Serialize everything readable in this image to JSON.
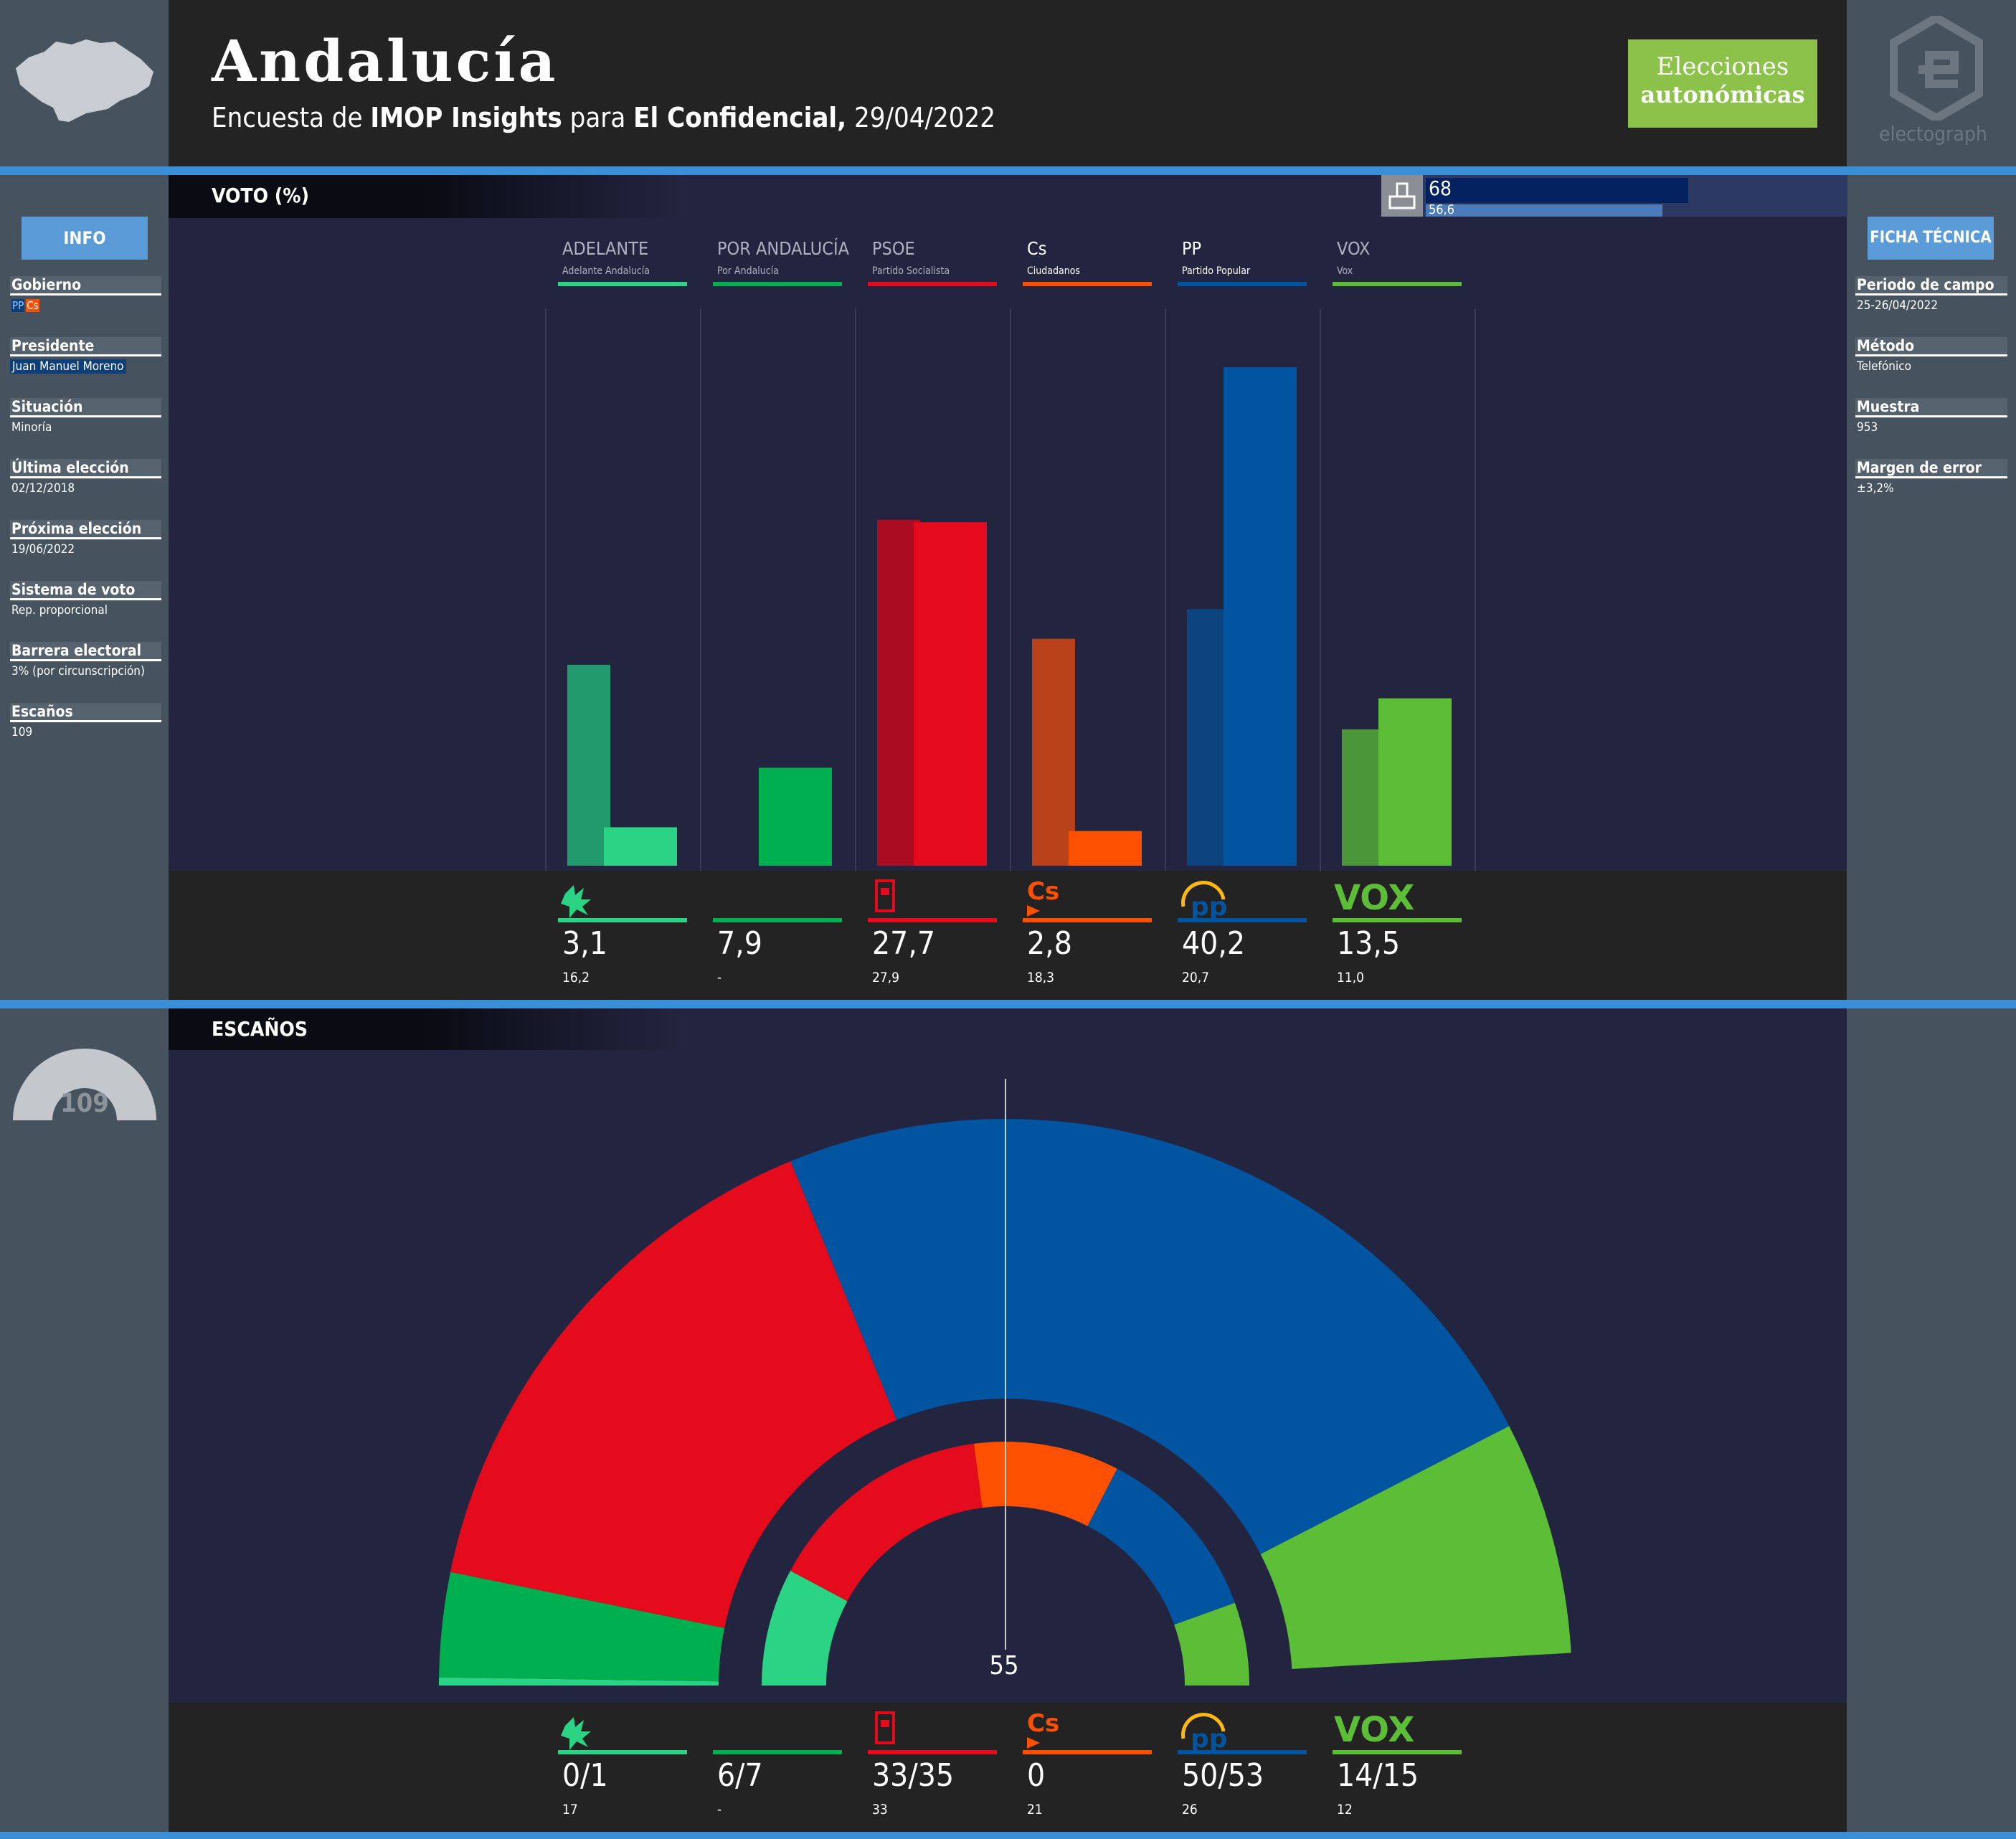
{
  "header": {
    "title": "Andalucía",
    "subtitle_prefix": "Encuesta de",
    "pollster": "IMOP Insights",
    "subtitle_mid": "para",
    "media": "El Confidencial,",
    "date": "29/04/2022",
    "badge_line1": "Elecciones",
    "badge_line2": "autonómicas",
    "brand": "electograph"
  },
  "info": {
    "button": "INFO",
    "items": [
      {
        "label": "Gobierno",
        "value": ""
      },
      {
        "label": "Presidente",
        "value": "Juan Manuel Moreno"
      },
      {
        "label": "Situación",
        "value": "Minoría"
      },
      {
        "label": "Última elección",
        "value": "02/12/2018"
      },
      {
        "label": "Próxima elección",
        "value": "19/06/2022"
      },
      {
        "label": "Sistema de voto",
        "value": "Rep. proporcional"
      },
      {
        "label": "Barrera electoral",
        "value": "3% (por circunscripción)"
      },
      {
        "label": "Escaños",
        "value": "109"
      }
    ],
    "government_tags": [
      "PP",
      "Cs"
    ]
  },
  "ficha": {
    "button": "FICHA TÉCNICA",
    "items": [
      {
        "label": "Periodo de campo",
        "value": "25-26/04/2022"
      },
      {
        "label": "Método",
        "value": "Telefónico"
      },
      {
        "label": "Muestra",
        "value": "953"
      },
      {
        "label": "Margen de error",
        "value": "±3,2%"
      }
    ]
  },
  "vote_section": {
    "title": "VOTO (%)",
    "participation_now": "68",
    "participation_prev": "56,6"
  },
  "seats_section": {
    "title": "ESCAÑOS",
    "total": "109",
    "majority_label": "55"
  },
  "colors": {
    "ADELANTE": "#2bd384",
    "ADELANTE_prev": "#239a6e",
    "POR_ANDALUCIA": "#00b050",
    "PSOE": "#e30b1c",
    "PSOE_prev": "#aa0d22",
    "Cs": "#fd5000",
    "Cs_prev": "#b8411a",
    "PP": "#0054a0",
    "PP_prev": "#0c4480",
    "VOX": "#5bbe36",
    "VOX_prev": "#4a9638"
  },
  "parties": [
    {
      "key": "ADELANTE",
      "name": "ADELANTE",
      "full": "Adelante Andalucía",
      "icon": "adelante-logo-icon",
      "vote": "3,1",
      "vote_prev": "16,2",
      "seats": "0/1",
      "seats_prev": "17"
    },
    {
      "key": "POR_ANDALUCIA",
      "name": "POR ANDALUCÍA",
      "full": "Por Andalucía",
      "icon": "",
      "vote": "7,9",
      "vote_prev": "-",
      "seats": "6/7",
      "seats_prev": "-"
    },
    {
      "key": "PSOE",
      "name": "PSOE",
      "full": "Partido Socialista",
      "icon": "psoe-logo-icon",
      "vote": "27,7",
      "vote_prev": "27,9",
      "seats": "33/35",
      "seats_prev": "33"
    },
    {
      "key": "Cs",
      "name": "Cs",
      "full": "Ciudadanos",
      "icon": "cs-logo-icon",
      "vote": "2,8",
      "vote_prev": "18,3",
      "seats": "0",
      "seats_prev": "21"
    },
    {
      "key": "PP",
      "name": "PP",
      "full": "Partido Popular",
      "icon": "pp-logo-icon",
      "vote": "40,2",
      "vote_prev": "20,7",
      "seats": "50/53",
      "seats_prev": "26"
    },
    {
      "key": "VOX",
      "name": "VOX",
      "full": "Vox",
      "icon": "vox-logo-icon",
      "vote": "13,5",
      "vote_prev": "11,0",
      "seats": "14/15",
      "seats_prev": "12"
    }
  ],
  "chart_data": [
    {
      "type": "bar",
      "title": "VOTO (%)",
      "categories": [
        "ADELANTE",
        "POR ANDALUCÍA",
        "PSOE",
        "Cs",
        "PP",
        "VOX"
      ],
      "series": [
        {
          "name": "",
          "values": [
            16.2,
            null,
            27.9,
            18.3,
            20.7,
            11.0
          ]
        },
        {
          "name": "",
          "values": [
            3.1,
            7.9,
            27.7,
            2.8,
            40.2,
            13.5
          ]
        }
      ],
      "ylim": [
        0,
        40.2
      ]
    },
    {
      "type": "pie",
      "title": "ESCAÑOS",
      "categories": [
        "ADELANTE",
        "POR ANDALUCÍA",
        "PSOE",
        "PP",
        "VOX"
      ],
      "series": [
        {
          "name": "",
          "values": [
            0.5,
            6.5,
            34,
            51.5,
            14.5
          ]
        }
      ],
      "previous": {
        "categories": [
          "ADELANTE",
          "PSOE",
          "Cs",
          "PP",
          "VOX"
        ],
        "values": [
          17,
          33,
          21,
          26,
          12
        ]
      },
      "total": 109,
      "majority": 55
    }
  ]
}
